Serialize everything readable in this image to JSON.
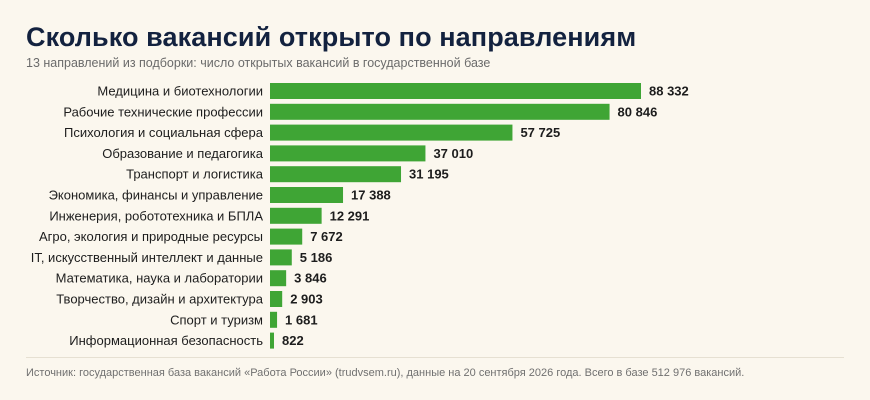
{
  "header": {
    "title": "Сколько вакансий открыто по направлениям",
    "subtitle": "13 направлений из подборки: число открытых вакансий в государственной базе"
  },
  "footer": {
    "source": "Источник: государственная база вакансий «Работа России» (trudvsem.ru), данные на 20 сентября 2026 года. Всего в базе 512 976 вакансий."
  },
  "colors": {
    "bar": "#3fa535",
    "background": "#fbf7ee",
    "title": "#13223f"
  },
  "chart_data": {
    "type": "bar",
    "orientation": "horizontal",
    "title": "Сколько вакансий открыто по направлениям",
    "subtitle": "13 направлений из подборки: число открытых вакансий в государственной базе",
    "grid": false,
    "categories": [
      "Медицина и биотехнологии",
      "Рабочие технические профессии",
      "Психология и социальная сфера",
      "Образование и педагогика",
      "Транспорт и логистика",
      "Экономика, финансы и управление",
      "Инженерия, робототехника и БПЛА",
      "Агро, экология и природные ресурсы",
      "IT, искусственный интеллект и данные",
      "Математика, наука и лаборатории",
      "Творчество, дизайн и архитектура",
      "Спорт и туризм",
      "Информационная безопасность"
    ],
    "values": [
      88332,
      80846,
      57725,
      37010,
      31195,
      17388,
      12291,
      7672,
      5186,
      3846,
      2903,
      1681,
      822
    ],
    "value_labels": [
      "88 332",
      "80 846",
      "57 725",
      "37 010",
      "31 195",
      "17 388",
      "12 291",
      "7 672",
      "5 186",
      "3 846",
      "2 903",
      "1 681",
      "822"
    ]
  }
}
